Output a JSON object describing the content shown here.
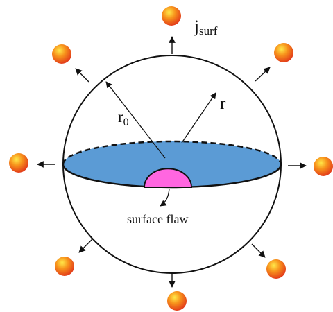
{
  "labels": {
    "j_main": "j",
    "j_sub": "surf",
    "r0_main": "r",
    "r0_sub": "0",
    "r_label": "r",
    "flaw_label": "surface flaw"
  },
  "colors": {
    "disk_fill": "#5b9bd5",
    "flaw_fill": "#ff66e0",
    "particle_center": "#ffe94a",
    "particle_mid": "#f7921b",
    "particle_edge": "#e23a1a",
    "outline": "#111111"
  },
  "icons": {
    "particle": "orange-sphere",
    "arrow": "arrow-outward"
  }
}
